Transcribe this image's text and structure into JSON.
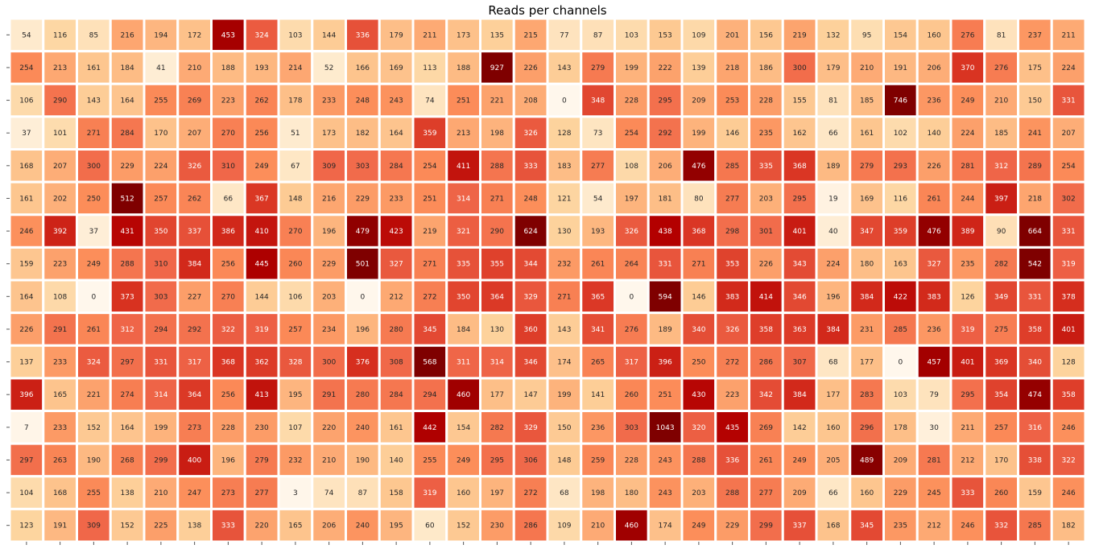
{
  "chart_data": {
    "type": "heatmap",
    "title": "Reads per channels",
    "xlabel": "",
    "ylabel": "",
    "colormap": "OrRd",
    "color_range": [
      0,
      500
    ],
    "grid_line_color": "#ffffff",
    "colorbar": false,
    "x_tick_labels_visible": false,
    "y_tick_labels_visible": false,
    "n_rows": 16,
    "n_cols": 32,
    "values": [
      [
        54,
        116,
        85,
        216,
        194,
        172,
        453,
        324,
        103,
        144,
        336,
        179,
        211,
        173,
        135,
        215,
        77,
        87,
        103,
        153,
        109,
        201,
        156,
        219,
        132,
        95,
        154,
        160,
        276,
        81,
        237,
        211
      ],
      [
        254,
        213,
        161,
        184,
        41,
        210,
        188,
        193,
        214,
        52,
        166,
        169,
        113,
        188,
        927,
        226,
        143,
        279,
        199,
        222,
        139,
        218,
        186,
        300,
        179,
        210,
        191,
        206,
        370,
        276,
        175,
        224
      ],
      [
        106,
        290,
        143,
        164,
        255,
        269,
        223,
        262,
        178,
        233,
        248,
        243,
        74,
        251,
        221,
        208,
        0,
        348,
        228,
        295,
        209,
        253,
        228,
        155,
        81,
        185,
        746,
        236,
        249,
        210,
        150,
        331
      ],
      [
        37,
        101,
        271,
        284,
        170,
        207,
        270,
        256,
        51,
        173,
        182,
        164,
        359,
        213,
        198,
        326,
        128,
        73,
        254,
        292,
        199,
        146,
        235,
        162,
        66,
        161,
        102,
        140,
        224,
        185,
        241,
        207
      ],
      [
        168,
        207,
        300,
        229,
        224,
        326,
        310,
        249,
        67,
        309,
        303,
        284,
        254,
        411,
        288,
        333,
        183,
        277,
        108,
        206,
        476,
        285,
        335,
        368,
        189,
        279,
        293,
        226,
        281,
        312,
        289,
        254
      ],
      [
        161,
        202,
        250,
        512,
        257,
        262,
        66,
        367,
        148,
        216,
        229,
        233,
        251,
        314,
        271,
        248,
        121,
        54,
        197,
        181,
        80,
        277,
        203,
        295,
        19,
        169,
        116,
        261,
        244,
        397,
        218,
        302
      ],
      [
        246,
        392,
        37,
        431,
        350,
        337,
        386,
        410,
        270,
        196,
        479,
        423,
        219,
        321,
        290,
        624,
        130,
        193,
        326,
        438,
        368,
        298,
        301,
        401,
        40,
        347,
        359,
        476,
        389,
        90,
        664,
        331
      ],
      [
        159,
        223,
        249,
        288,
        310,
        384,
        256,
        445,
        260,
        229,
        501,
        327,
        271,
        335,
        355,
        344,
        232,
        261,
        264,
        331,
        271,
        353,
        226,
        343,
        224,
        180,
        163,
        327,
        235,
        282,
        542,
        319
      ],
      [
        164,
        108,
        0,
        373,
        303,
        227,
        270,
        144,
        106,
        203,
        0,
        212,
        272,
        350,
        364,
        329,
        271,
        365,
        0,
        594,
        146,
        383,
        414,
        346,
        196,
        384,
        422,
        383,
        126,
        349,
        331,
        378
      ],
      [
        226,
        291,
        261,
        312,
        294,
        292,
        322,
        319,
        257,
        234,
        196,
        280,
        345,
        184,
        130,
        360,
        143,
        341,
        276,
        189,
        340,
        326,
        358,
        363,
        384,
        231,
        285,
        236,
        319,
        275,
        358,
        401
      ],
      [
        137,
        233,
        324,
        297,
        331,
        317,
        368,
        362,
        328,
        300,
        376,
        308,
        568,
        311,
        314,
        346,
        174,
        265,
        317,
        396,
        250,
        272,
        286,
        307,
        68,
        177,
        0,
        457,
        401,
        369,
        340,
        128
      ],
      [
        396,
        165,
        221,
        274,
        314,
        364,
        256,
        413,
        195,
        291,
        280,
        284,
        294,
        460,
        177,
        147,
        199,
        141,
        260,
        251,
        430,
        223,
        342,
        384,
        177,
        283,
        103,
        79,
        295,
        354,
        474,
        358
      ],
      [
        7,
        233,
        152,
        164,
        199,
        273,
        228,
        230,
        107,
        220,
        240,
        161,
        442,
        154,
        282,
        329,
        150,
        236,
        303,
        1043,
        320,
        435,
        269,
        142,
        160,
        296,
        178,
        30,
        211,
        257,
        316,
        246
      ],
      [
        297,
        263,
        190,
        268,
        299,
        400,
        196,
        279,
        232,
        210,
        190,
        140,
        255,
        249,
        295,
        306,
        148,
        259,
        228,
        243,
        288,
        336,
        261,
        249,
        205,
        489,
        209,
        281,
        212,
        170,
        338,
        322
      ],
      [
        104,
        168,
        255,
        138,
        210,
        247,
        273,
        277,
        3,
        74,
        87,
        158,
        319,
        160,
        197,
        272,
        68,
        198,
        180,
        243,
        203,
        288,
        277,
        209,
        66,
        160,
        229,
        245,
        333,
        260,
        159,
        246
      ],
      [
        123,
        191,
        309,
        152,
        225,
        138,
        333,
        220,
        165,
        206,
        240,
        195,
        60,
        152,
        230,
        286,
        109,
        210,
        460,
        174,
        249,
        229,
        299,
        337,
        168,
        345,
        235,
        212,
        246,
        332,
        285,
        182
      ]
    ]
  }
}
